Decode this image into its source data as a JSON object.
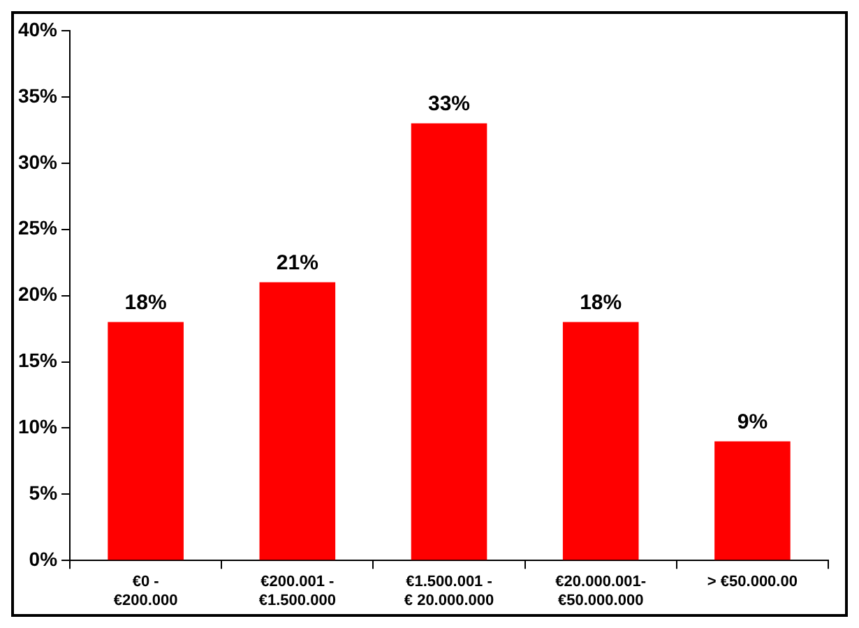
{
  "chart_data": {
    "type": "bar",
    "categories": [
      "€0 - €200.000",
      "€200.001 - €1.500.000",
      "€1.500.001 - € 20.000.000",
      "€20.000.001- €50.000.000",
      "> €50.000.00"
    ],
    "values": [
      18,
      21,
      33,
      18,
      9
    ],
    "color": "#ff0000",
    "ylim": [
      0,
      40
    ],
    "yticks": [
      {
        "value": 0,
        "label": "0%"
      },
      {
        "value": 5,
        "label": "5%"
      },
      {
        "value": 10,
        "label": "10%"
      },
      {
        "value": 15,
        "label": "15%"
      },
      {
        "value": 20,
        "label": "20%"
      },
      {
        "value": 25,
        "label": "25%"
      },
      {
        "value": 30,
        "label": "30%"
      },
      {
        "value": 35,
        "label": "35%"
      },
      {
        "value": 40,
        "label": "40%"
      }
    ],
    "data_labels": true,
    "value_labels": [
      "18%",
      "21%",
      "33%",
      "18%",
      "9%"
    ],
    "grid": false,
    "legend": false
  }
}
